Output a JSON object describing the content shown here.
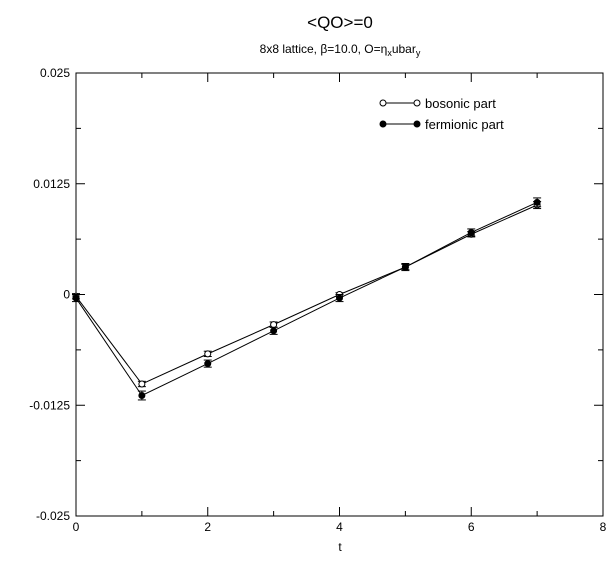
{
  "chart_data": {
    "type": "line",
    "title": "<QO>=0",
    "subtitle": "8x8 lattice, β=10.0, O=η",
    "subtitle_sub1": "x",
    "subtitle_mid": "ubar",
    "subtitle_sub2": "y",
    "xlabel": "t",
    "ylabel": "",
    "xlim": [
      0,
      8
    ],
    "ylim": [
      -0.025,
      0.025
    ],
    "xticks": [
      0,
      2,
      4,
      6,
      8
    ],
    "xtick_labels": [
      "0",
      "2",
      "4",
      "6",
      "8"
    ],
    "yticks": [
      -0.025,
      -0.0125,
      0,
      0.0125,
      0.025
    ],
    "ytick_labels": [
      "-0.025",
      "-0.0125",
      "0",
      "0.0125",
      "0.025"
    ],
    "grid": false,
    "legend_position": "top-right",
    "series": [
      {
        "name": "bosonic part",
        "marker": "open-circle",
        "color": "#000000",
        "x": [
          0,
          1,
          2,
          3,
          4,
          5,
          6,
          7
        ],
        "y": [
          -0.0002,
          -0.0101,
          -0.0067,
          -0.0034,
          0.0,
          0.0031,
          0.0068,
          0.0101
        ],
        "err": [
          0.0003,
          0.0003,
          0.0003,
          0.0003,
          0.0002,
          0.0003,
          0.0003,
          0.0004
        ]
      },
      {
        "name": "fermionic part",
        "marker": "filled-circle",
        "color": "#000000",
        "x": [
          0,
          1,
          2,
          3,
          4,
          5,
          6,
          7
        ],
        "y": [
          -0.0004,
          -0.0114,
          -0.0078,
          -0.0041,
          -0.0004,
          0.0031,
          0.007,
          0.0104
        ],
        "err": [
          0.0004,
          0.0005,
          0.0004,
          0.0004,
          0.0004,
          0.0004,
          0.0004,
          0.0005
        ]
      }
    ]
  }
}
